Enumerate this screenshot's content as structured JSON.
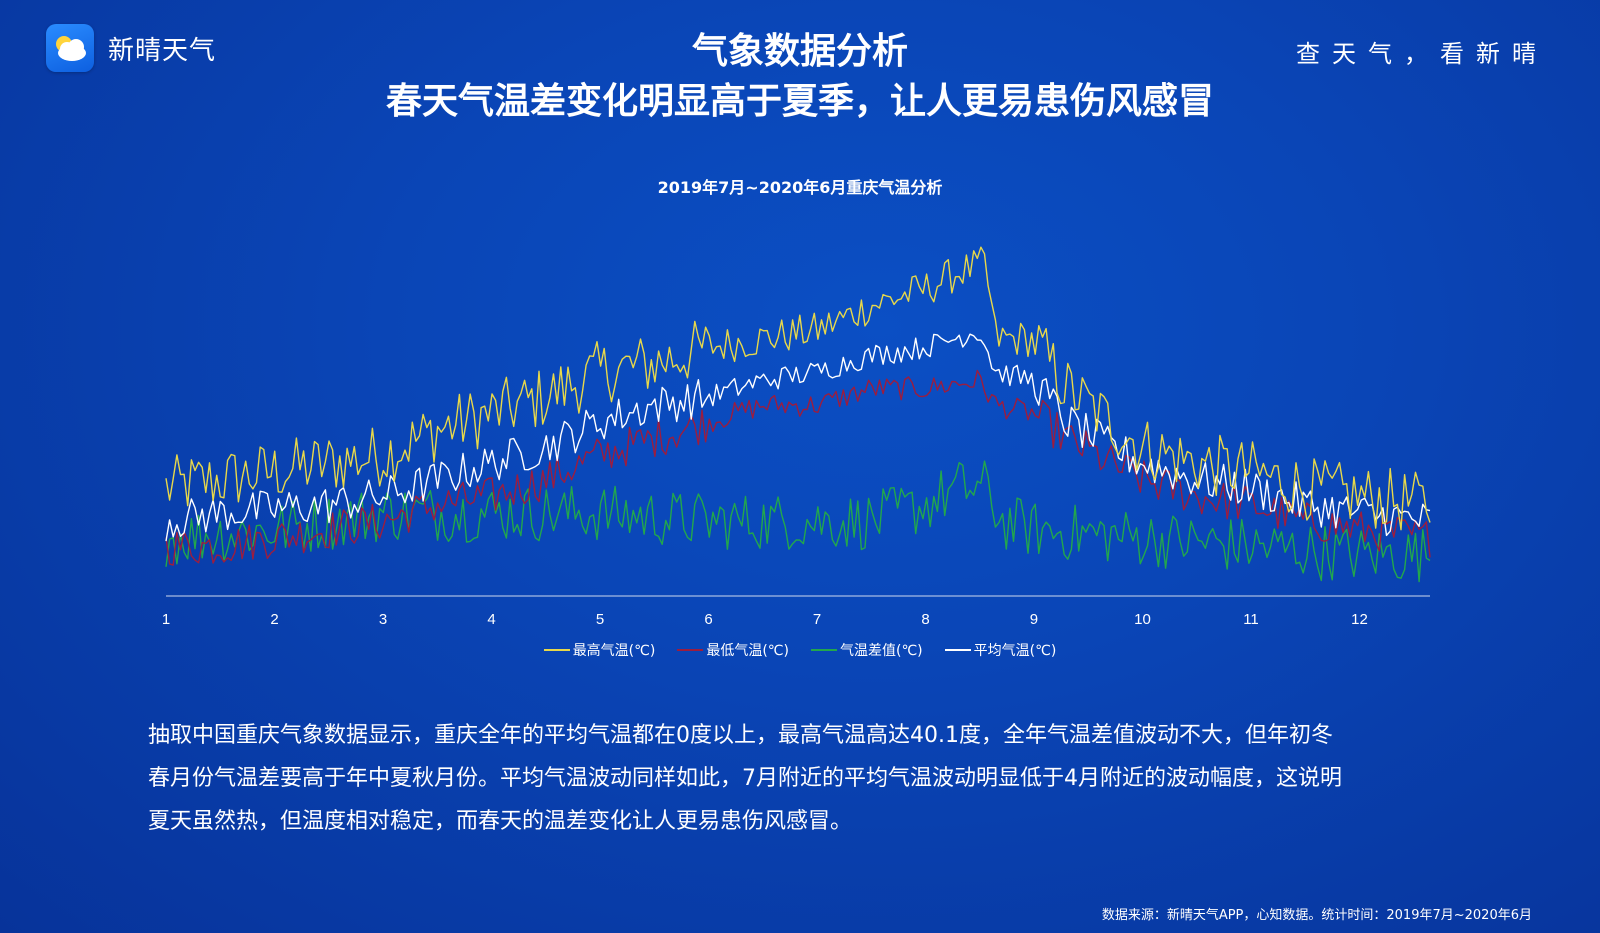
{
  "header": {
    "app_name": "新晴天气",
    "logo_icon": "cloud-sun-icon",
    "slogan": "查天气，看新晴",
    "title_line1": "气象数据分析",
    "title_line2": "春天气温差变化明显高于夏季，让人更易患伤风感冒"
  },
  "chart_data": {
    "type": "line",
    "title": "2019年7月~2020年6月重庆气温分析",
    "x_tick_labels": [
      "1",
      "2",
      "3",
      "4",
      "5",
      "6",
      "7",
      "8",
      "9",
      "10",
      "11",
      "12"
    ],
    "xlim": [
      1,
      12.65
    ],
    "ylim": [
      -1,
      40.1
    ],
    "grid": false,
    "legend_position": "bottom",
    "series": [
      {
        "name": "最高气温(℃)",
        "color": "#e8d84a",
        "anchors": [
          [
            1,
            12
          ],
          [
            1.5,
            13
          ],
          [
            2,
            14
          ],
          [
            2.5,
            15
          ],
          [
            3,
            16
          ],
          [
            3.5,
            19
          ],
          [
            4,
            21
          ],
          [
            4.5,
            23
          ],
          [
            5,
            26
          ],
          [
            5.5,
            27
          ],
          [
            6,
            29
          ],
          [
            6.5,
            30
          ],
          [
            7,
            31
          ],
          [
            7.5,
            34
          ],
          [
            8,
            36
          ],
          [
            8.3,
            38
          ],
          [
            8.55,
            39
          ],
          [
            8.65,
            30
          ],
          [
            9,
            30
          ],
          [
            9.3,
            24
          ],
          [
            9.7,
            20
          ],
          [
            10,
            17
          ],
          [
            10.5,
            15
          ],
          [
            11,
            14
          ],
          [
            11.5,
            12
          ],
          [
            12,
            11
          ],
          [
            12.65,
            10
          ]
        ]
      },
      {
        "name": "最低气温(℃)",
        "color": "#9c1d3f",
        "anchors": [
          [
            1,
            5
          ],
          [
            1.5,
            5
          ],
          [
            2,
            6
          ],
          [
            2.5,
            7
          ],
          [
            3,
            8
          ],
          [
            3.5,
            10
          ],
          [
            4,
            11
          ],
          [
            4.5,
            13
          ],
          [
            5,
            16
          ],
          [
            5.5,
            18
          ],
          [
            6,
            20
          ],
          [
            6.5,
            22
          ],
          [
            7,
            22
          ],
          [
            7.5,
            24
          ],
          [
            8,
            24
          ],
          [
            8.5,
            25
          ],
          [
            8.65,
            22
          ],
          [
            9,
            21
          ],
          [
            9.3,
            18
          ],
          [
            9.7,
            15
          ],
          [
            10,
            13
          ],
          [
            10.5,
            11
          ],
          [
            11,
            10
          ],
          [
            11.5,
            8
          ],
          [
            12,
            7
          ],
          [
            12.65,
            6
          ]
        ]
      },
      {
        "name": "气温差值(℃)",
        "color": "#22a74c",
        "anchors": [
          [
            1,
            6
          ],
          [
            2,
            7
          ],
          [
            3,
            9
          ],
          [
            4,
            9
          ],
          [
            5,
            9
          ],
          [
            6,
            8
          ],
          [
            7,
            8
          ],
          [
            7.5,
            8
          ],
          [
            8,
            10
          ],
          [
            8.3,
            12
          ],
          [
            8.55,
            12
          ],
          [
            8.7,
            8
          ],
          [
            9,
            7
          ],
          [
            10,
            6
          ],
          [
            11,
            5
          ],
          [
            12,
            4
          ],
          [
            12.65,
            4
          ]
        ]
      },
      {
        "name": "平均气温(℃)",
        "color": "#ffffff",
        "anchors": [
          [
            1,
            8
          ],
          [
            1.5,
            9
          ],
          [
            2,
            9.5
          ],
          [
            2.5,
            10
          ],
          [
            3,
            11
          ],
          [
            3.5,
            13
          ],
          [
            4,
            15
          ],
          [
            4.5,
            17
          ],
          [
            5,
            20
          ],
          [
            5.5,
            22
          ],
          [
            6,
            23
          ],
          [
            6.5,
            25
          ],
          [
            7,
            26
          ],
          [
            7.5,
            28
          ],
          [
            8,
            29
          ],
          [
            8.5,
            31
          ],
          [
            8.65,
            26
          ],
          [
            9,
            25
          ],
          [
            9.3,
            20
          ],
          [
            9.7,
            17
          ],
          [
            10,
            15
          ],
          [
            10.5,
            13
          ],
          [
            11,
            12
          ],
          [
            11.5,
            10
          ],
          [
            12,
            9
          ],
          [
            12.65,
            8
          ]
        ]
      }
    ]
  },
  "description": [
    "抽取中国重庆气象数据显示，重庆全年的平均气温都在0度以上，最高气温高达40.1度，全年气温差值波动不大，但年初冬",
    "春月份气温差要高于年中夏秋月份。平均气温波动同样如此，7月附近的平均气温波动明显低于4月附近的波动幅度，这说明",
    "夏天虽然热，但温度相对稳定，而春天的温差变化让人更易患伤风感冒。"
  ],
  "footer": {
    "source": "数据来源：新晴天气APP，心知数据。统计时间：2019年7月~2020年6月"
  }
}
